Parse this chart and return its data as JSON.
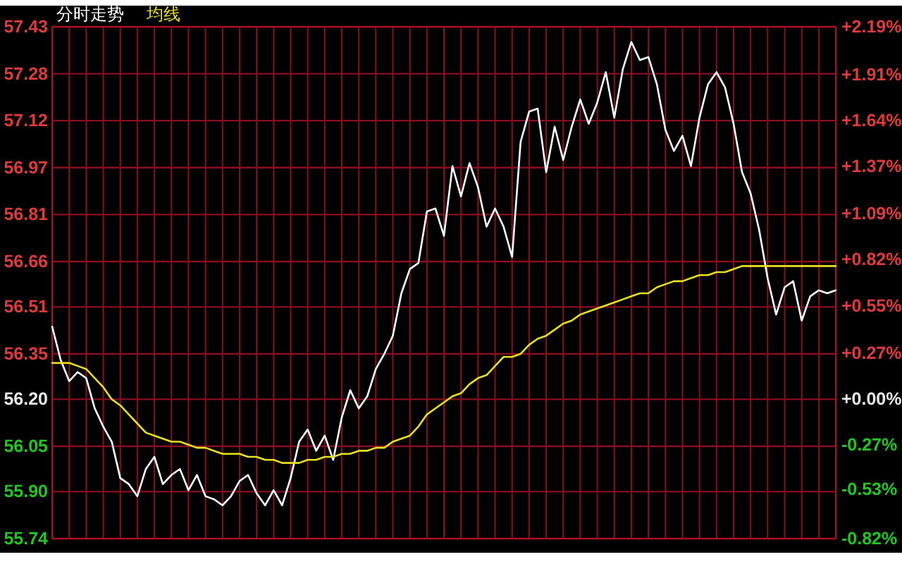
{
  "chart_data": {
    "type": "line",
    "grid": true,
    "marker": "none",
    "line_style": "solid",
    "categories": [
      null,
      null,
      null,
      null,
      null,
      null,
      null,
      null,
      null,
      null,
      null,
      null,
      null,
      null,
      null,
      null,
      null,
      null,
      null,
      null,
      null,
      null,
      null,
      null,
      null,
      null,
      null,
      null,
      null,
      null,
      null,
      null,
      null,
      null,
      null,
      null,
      null,
      null,
      null,
      null,
      null,
      null,
      null,
      null,
      null,
      null,
      null,
      null,
      null,
      null,
      null,
      null,
      null,
      null,
      null,
      null,
      null,
      null,
      null,
      null,
      null,
      null,
      null,
      null,
      null,
      null,
      null,
      null,
      null,
      null,
      null,
      null,
      null,
      null,
      null,
      null,
      null,
      null,
      null,
      null,
      null,
      null,
      null,
      null,
      null,
      null,
      null,
      null,
      null,
      null,
      null,
      null,
      null
    ],
    "ylim": [
      55.74,
      57.43
    ],
    "yticks": [
      {
        "value": 57.43,
        "label": "57.43"
      },
      {
        "value": 57.275,
        "label": "57.28"
      },
      {
        "value": 57.12,
        "label": "57.12"
      },
      {
        "value": 56.965,
        "label": "56.97"
      },
      {
        "value": 56.81,
        "label": "56.81"
      },
      {
        "value": 56.655,
        "label": "56.66"
      },
      {
        "value": 56.505,
        "label": "56.51"
      },
      {
        "value": 56.35,
        "label": "56.35"
      },
      {
        "value": 56.2,
        "label": "56.20"
      },
      {
        "value": 56.045,
        "label": "56.05"
      },
      {
        "value": 55.895,
        "label": "55.90"
      },
      {
        "value": 55.74,
        "label": "55.74"
      }
    ],
    "y2lim": [
      -0.82,
      2.19
    ],
    "y2ticks": [
      {
        "value": 2.19,
        "label": "+2.19%"
      },
      {
        "value": 1.91,
        "label": "+1.91%"
      },
      {
        "value": 1.64,
        "label": "+1.64%"
      },
      {
        "value": 1.37,
        "label": "+1.37%"
      },
      {
        "value": 1.09,
        "label": "+1.09%"
      },
      {
        "value": 0.82,
        "label": "+0.82%"
      },
      {
        "value": 0.55,
        "label": "+0.55%"
      },
      {
        "value": 0.27,
        "label": "+0.27%"
      },
      {
        "value": 0,
        "label": "+0.00%"
      },
      {
        "value": -0.27,
        "label": "-0.27%"
      },
      {
        "value": -0.53,
        "label": "-0.53%"
      },
      {
        "value": -0.82,
        "label": "-0.82%"
      }
    ],
    "series": [
      {
        "name": "分时走势",
        "color": "#ffffff",
        "values": [
          56.44,
          56.33,
          56.26,
          56.29,
          56.27,
          56.17,
          56.11,
          56.06,
          55.94,
          55.92,
          55.88,
          55.97,
          56.01,
          55.92,
          55.95,
          55.97,
          55.9,
          55.95,
          55.88,
          55.87,
          55.85,
          55.88,
          55.93,
          55.95,
          55.89,
          55.85,
          55.9,
          55.85,
          55.94,
          56.06,
          56.1,
          56.03,
          56.08,
          56.0,
          56.14,
          56.23,
          56.17,
          56.21,
          56.3,
          56.35,
          56.41,
          56.55,
          56.63,
          56.65,
          56.82,
          56.83,
          56.74,
          56.97,
          56.87,
          56.98,
          56.9,
          56.77,
          56.83,
          56.77,
          56.67,
          57.05,
          57.15,
          57.16,
          56.95,
          57.1,
          56.99,
          57.1,
          57.19,
          57.11,
          57.18,
          57.28,
          57.13,
          57.29,
          57.38,
          57.32,
          57.33,
          57.24,
          57.09,
          57.02,
          57.07,
          56.97,
          57.13,
          57.24,
          57.28,
          57.23,
          57.11,
          56.95,
          56.88,
          56.76,
          56.6,
          56.48,
          56.57,
          56.59,
          56.46,
          56.54,
          56.56,
          56.55,
          56.56
        ]
      },
      {
        "name": "均线",
        "color": "#e8e020",
        "values": [
          56.32,
          56.32,
          56.32,
          56.31,
          56.3,
          56.27,
          56.24,
          56.2,
          56.18,
          56.15,
          56.12,
          56.09,
          56.08,
          56.07,
          56.06,
          56.06,
          56.05,
          56.04,
          56.04,
          56.03,
          56.02,
          56.02,
          56.02,
          56.01,
          56.01,
          56.0,
          56.0,
          55.99,
          55.99,
          55.99,
          56.0,
          56.0,
          56.01,
          56.01,
          56.02,
          56.02,
          56.03,
          56.03,
          56.04,
          56.04,
          56.06,
          56.07,
          56.08,
          56.11,
          56.15,
          56.17,
          56.19,
          56.21,
          56.22,
          56.25,
          56.27,
          56.28,
          56.31,
          56.34,
          56.34,
          56.35,
          56.38,
          56.4,
          56.41,
          56.43,
          56.45,
          56.46,
          56.48,
          56.49,
          56.5,
          56.51,
          56.52,
          56.53,
          56.54,
          56.55,
          56.55,
          56.57,
          56.58,
          56.59,
          56.59,
          56.6,
          56.61,
          56.61,
          56.62,
          56.62,
          56.63,
          56.64,
          56.64,
          56.64,
          56.64,
          56.64,
          56.64,
          56.64,
          56.64,
          56.64,
          56.64,
          56.64,
          56.64
        ]
      }
    ]
  }
}
